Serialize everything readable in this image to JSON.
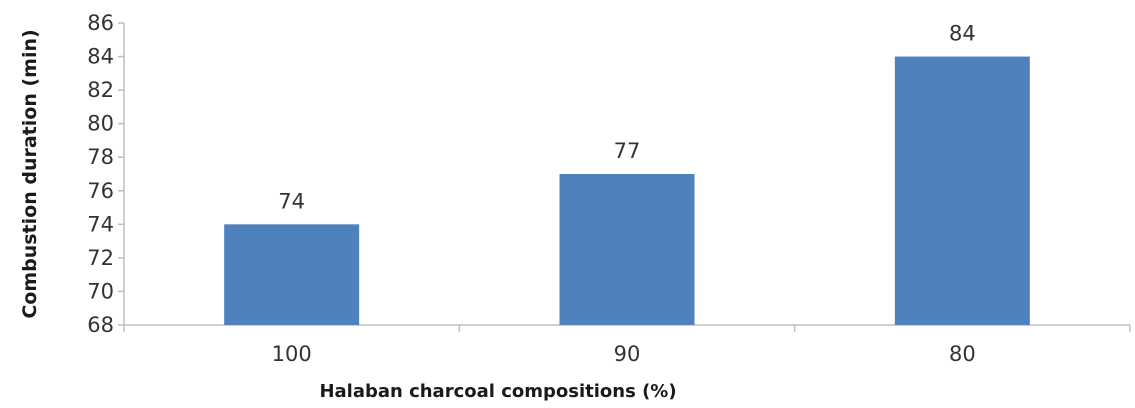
{
  "chart_data": {
    "type": "bar",
    "categories": [
      "100",
      "90",
      "80"
    ],
    "values": [
      74,
      77,
      84
    ],
    "data_labels": [
      "74",
      "77",
      "84"
    ],
    "xlabel": "Halaban charcoal compositions (%)",
    "ylabel": "Combustion duration (min)",
    "ylim": [
      68,
      86
    ],
    "yticks": [
      "68",
      "70",
      "72",
      "74",
      "76",
      "78",
      "80",
      "82",
      "84",
      "86"
    ],
    "grid": false,
    "legend": "none",
    "bar_color": "#4f81bd",
    "axis_color": "#bfbfbf"
  }
}
